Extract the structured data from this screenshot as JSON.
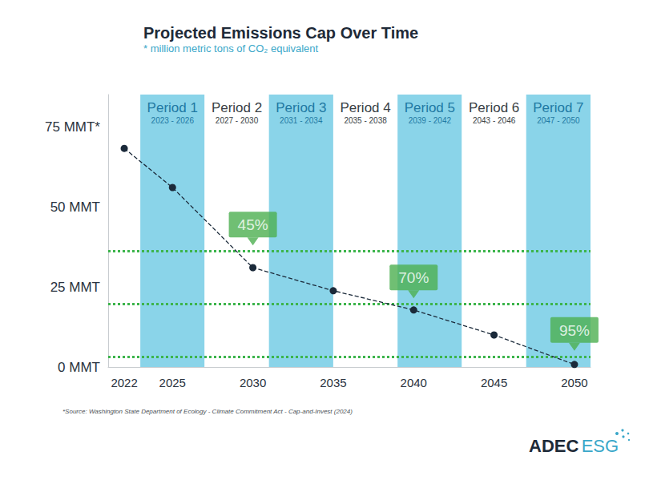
{
  "chart_data": {
    "type": "line",
    "title": "Projected Emissions Cap Over Time",
    "subtitle": "* million metric tons of CO₂ equivalent",
    "x": [
      2022,
      2025,
      2030,
      2035,
      2040,
      2045,
      2050
    ],
    "values": [
      68.2,
      56,
      31,
      23.8,
      17.8,
      10,
      0.8
    ],
    "color": "#1b2a3a",
    "marker": "circle",
    "line_style": "dashed",
    "xlim": [
      2021,
      2051
    ],
    "xticks": [
      2022,
      2025,
      2030,
      2035,
      2040,
      2045,
      2050
    ],
    "ylim": [
      0,
      85
    ],
    "yticks": [
      {
        "value": 0,
        "label": "0 MMT"
      },
      {
        "value": 25,
        "label": "25 MMT"
      },
      {
        "value": 50,
        "label": "50 MMT"
      },
      {
        "value": 75,
        "label": "75 MMT*"
      }
    ],
    "grid": false,
    "periods": [
      {
        "name": "Period 1",
        "label": "2023 - 2026",
        "start": 2023,
        "end": 2026,
        "color": "#8ad4e9"
      },
      {
        "name": "Period 2",
        "label": "2027 - 2030",
        "start": 2027,
        "end": 2030,
        "color": "#ffffff"
      },
      {
        "name": "Period 3",
        "label": "2031 - 2034",
        "start": 2031,
        "end": 2034,
        "color": "#8ad4e9"
      },
      {
        "name": "Period 4",
        "label": "2035 - 2038",
        "start": 2035,
        "end": 2038,
        "color": "#ffffff"
      },
      {
        "name": "Period 5",
        "label": "2039 - 2042",
        "start": 2039,
        "end": 2042,
        "color": "#8ad4e9"
      },
      {
        "name": "Period 6",
        "label": "2043 - 2046",
        "start": 2043,
        "end": 2046,
        "color": "#ffffff"
      },
      {
        "name": "Period 7",
        "label": "2047 - 2050",
        "start": 2047,
        "end": 2050,
        "color": "#8ad4e9"
      }
    ],
    "reference_lines": [
      {
        "value": 36.2,
        "label": "45%",
        "x": 2030,
        "color": "#3cb44b"
      },
      {
        "value": 19.7,
        "label": "70%",
        "x": 2040,
        "color": "#3cb44b"
      },
      {
        "value": 3.3,
        "label": "95%",
        "x": 2050,
        "color": "#3cb44b"
      }
    ],
    "source": "*Source: Washington State Department of Ecology - Climate Commitment Act - Cap-and-Invest (2024)",
    "logo": "ADEC ESG"
  }
}
